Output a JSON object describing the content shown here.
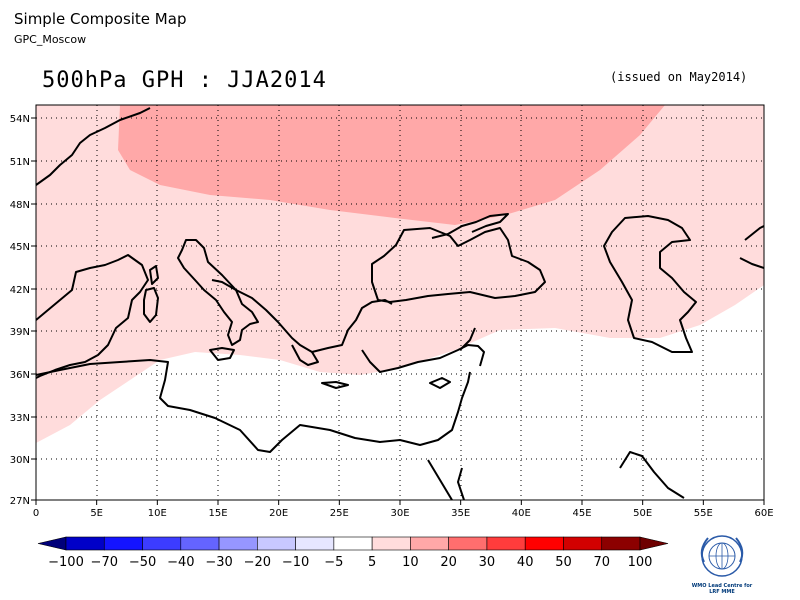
{
  "header": {
    "title": "Simple Composite Map",
    "subtitle": "GPC_Moscow",
    "map_title": "500hPa GPH : JJA2014",
    "issued": "(issued on May2014)"
  },
  "axes": {
    "lon_labels": [
      "0",
      "5E",
      "10E",
      "15E",
      "20E",
      "25E",
      "30E",
      "35E",
      "40E",
      "45E",
      "50E",
      "55E",
      "60E"
    ],
    "lat_labels": [
      "54N",
      "51N",
      "48N",
      "45N",
      "42N",
      "39N",
      "36N",
      "33N",
      "30N",
      "27N"
    ]
  },
  "colorbar": {
    "labels": [
      "−100",
      "−70",
      "−50",
      "−40",
      "−30",
      "−20",
      "−10",
      "−5",
      "5",
      "10",
      "20",
      "30",
      "40",
      "50",
      "70",
      "100"
    ],
    "colors": [
      "#00007a",
      "#0000c8",
      "#1414ff",
      "#3c3cff",
      "#6464ff",
      "#9696ff",
      "#c8c8ff",
      "#e6e6ff",
      "#ffffff",
      "#ffdcdc",
      "#ffa8a8",
      "#ff6e6e",
      "#ff3c3c",
      "#ff0000",
      "#d20000",
      "#8c0000",
      "#6e0000"
    ]
  },
  "map_colors": {
    "shade_10": "#ffdcdc",
    "shade_20": "#ffa8a8",
    "grid": "#000000",
    "coast": "#000000"
  },
  "logo": {
    "line1": "WMO Lead Centre for",
    "line2": "LRF MME"
  }
}
